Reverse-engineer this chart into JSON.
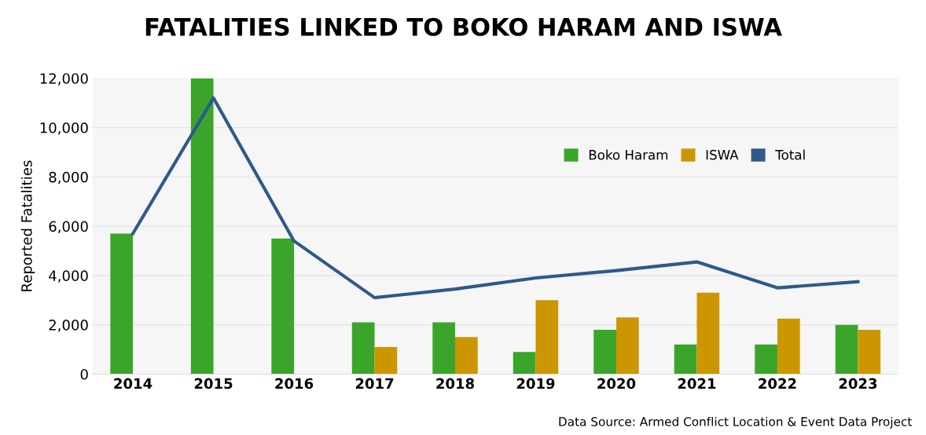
{
  "chart_data": {
    "type": "bar",
    "title": "FATALITIES LINKED TO BOKO HARAM AND ISWA",
    "ylabel": "Reported Fatalities",
    "categories": [
      "2014",
      "2015",
      "2016",
      "2017",
      "2018",
      "2019",
      "2020",
      "2021",
      "2022",
      "2023"
    ],
    "series": [
      {
        "name": "Boko Haram",
        "color": "#3aa52a",
        "values": [
          5700,
          12000,
          5500,
          2100,
          2100,
          900,
          1800,
          1200,
          1200,
          2000
        ]
      },
      {
        "name": "ISWA",
        "color": "#cc9600",
        "values": [
          null,
          null,
          null,
          1100,
          1500,
          3000,
          2300,
          3300,
          2250,
          1800
        ]
      },
      {
        "name": "Total",
        "type": "line",
        "color": "#2e5a8a",
        "values": [
          5700,
          11200,
          5400,
          3100,
          3450,
          3900,
          4200,
          4550,
          3500,
          3750
        ]
      }
    ],
    "ylim": [
      0,
      12000
    ],
    "yticks": [
      {
        "value": 0,
        "label": "0"
      },
      {
        "value": 2000,
        "label": "2,000"
      },
      {
        "value": 4000,
        "label": "4,000"
      },
      {
        "value": 6000,
        "label": "6,000"
      },
      {
        "value": 8000,
        "label": "8,000"
      },
      {
        "value": 10000,
        "label": "10,000"
      },
      {
        "value": 12000,
        "label": "12,000"
      }
    ],
    "grid": "y",
    "legend": "top right",
    "annotations": [
      "Data Source: Armed Conflict Location & Event Data Project"
    ]
  }
}
